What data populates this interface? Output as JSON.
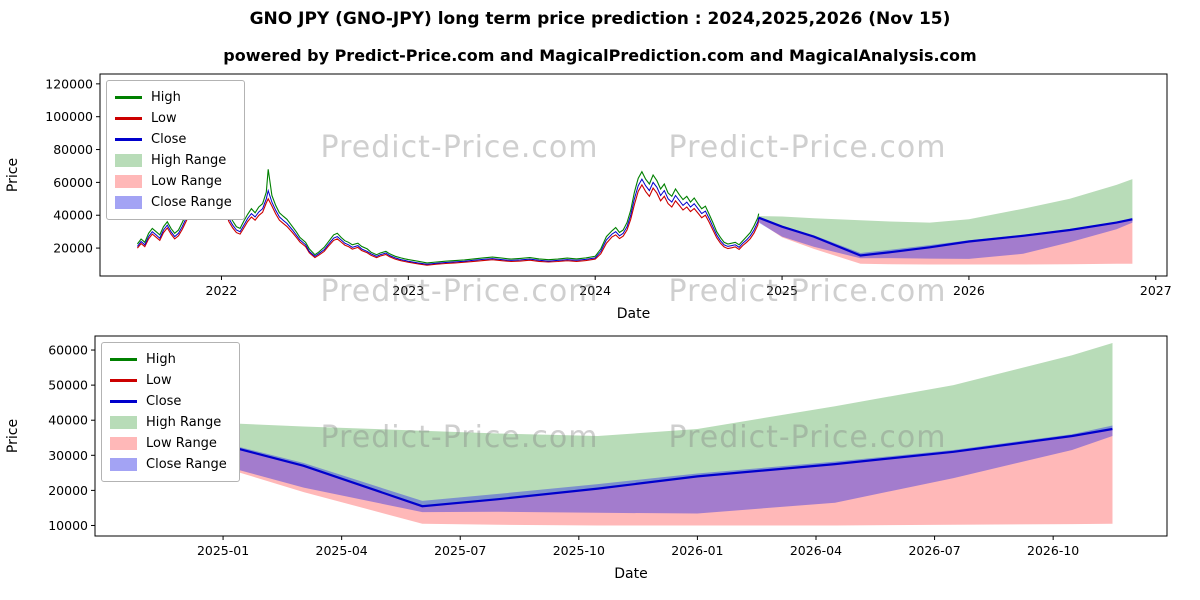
{
  "page": {
    "title": "GNO JPY (GNO-JPY) long term price prediction : 2024,2025,2026 (Nov 15)",
    "subtitle": "powered by Predict-Price.com and MagicalPrediction.com and MagicalAnalysis.com"
  },
  "watermark": {
    "text": "Predict-Price.com"
  },
  "colors": {
    "high": "#008000",
    "low": "#cc0000",
    "close": "#0000cc",
    "high_range": "rgba(0,128,0,0.28)",
    "low_range": "rgba(255,0,0,0.28)",
    "close_range": "rgba(50,50,230,0.45)"
  },
  "legend": {
    "entries": [
      {
        "label": "High",
        "swatch": "line",
        "color_key": "high"
      },
      {
        "label": "Low",
        "swatch": "line",
        "color_key": "low"
      },
      {
        "label": "Close",
        "swatch": "line",
        "color_key": "close"
      },
      {
        "label": "High Range",
        "swatch": "patch",
        "color_key": "high_range"
      },
      {
        "label": "Low Range",
        "swatch": "patch",
        "color_key": "low_range"
      },
      {
        "label": "Close Range",
        "swatch": "patch",
        "color_key": "close_range"
      }
    ]
  },
  "chart_data": [
    {
      "type": "line",
      "name": "long-term-history-and-forecast",
      "xlabel": "Date",
      "ylabel": "Price",
      "xlim": [
        2021.35,
        2027.06
      ],
      "ylim": [
        3000,
        126000
      ],
      "xticks": {
        "values": [
          2022,
          2023,
          2024,
          2025,
          2026,
          2027
        ],
        "labels": [
          "2022",
          "2023",
          "2024",
          "2025",
          "2026",
          "2027"
        ]
      },
      "yticks": {
        "values": [
          20000,
          40000,
          60000,
          80000,
          100000,
          120000
        ],
        "labels": [
          "20000",
          "40000",
          "60000",
          "80000",
          "100000",
          "120000"
        ]
      },
      "history": {
        "x": [
          2021.55,
          2021.57,
          2021.59,
          2021.61,
          2021.63,
          2021.65,
          2021.67,
          2021.69,
          2021.71,
          2021.73,
          2021.75,
          2021.77,
          2021.79,
          2021.81,
          2021.83,
          2021.85,
          2021.86,
          2021.88,
          2021.9,
          2021.92,
          2021.94,
          2021.96,
          2021.98,
          2022.0,
          2022.02,
          2022.04,
          2022.06,
          2022.08,
          2022.1,
          2022.12,
          2022.14,
          2022.16,
          2022.18,
          2022.2,
          2022.22,
          2022.24,
          2022.25,
          2022.27,
          2022.29,
          2022.31,
          2022.33,
          2022.35,
          2022.38,
          2022.4,
          2022.42,
          2022.45,
          2022.47,
          2022.5,
          2022.52,
          2022.55,
          2022.57,
          2022.6,
          2022.62,
          2022.64,
          2022.66,
          2022.68,
          2022.7,
          2022.73,
          2022.75,
          2022.78,
          2022.8,
          2022.83,
          2022.85,
          2022.88,
          2022.9,
          2022.93,
          2022.96,
          2022.98,
          2023.0,
          2023.05,
          2023.1,
          2023.15,
          2023.2,
          2023.25,
          2023.3,
          2023.35,
          2023.4,
          2023.45,
          2023.5,
          2023.55,
          2023.6,
          2023.65,
          2023.7,
          2023.75,
          2023.8,
          2023.85,
          2023.9,
          2023.95,
          2024.0,
          2024.03,
          2024.06,
          2024.09,
          2024.11,
          2024.13,
          2024.15,
          2024.17,
          2024.19,
          2024.21,
          2024.23,
          2024.25,
          2024.27,
          2024.29,
          2024.31,
          2024.33,
          2024.35,
          2024.37,
          2024.39,
          2024.41,
          2024.43,
          2024.45,
          2024.47,
          2024.49,
          2024.51,
          2024.53,
          2024.55,
          2024.57,
          2024.59,
          2024.61,
          2024.63,
          2024.65,
          2024.67,
          2024.69,
          2024.71,
          2024.73,
          2024.75,
          2024.77,
          2024.79,
          2024.81,
          2024.83,
          2024.85,
          2024.87,
          2024.875
        ],
        "high": [
          22500,
          25500,
          23500,
          29000,
          32000,
          30000,
          28000,
          33000,
          36000,
          32000,
          29000,
          31000,
          35500,
          40500,
          46000,
          49500,
          122000,
          51500,
          48000,
          45000,
          49500,
          46000,
          42500,
          44000,
          48000,
          40500,
          36500,
          33000,
          32000,
          36500,
          40500,
          44000,
          41500,
          45000,
          47000,
          54000,
          68000,
          52000,
          46000,
          41500,
          39500,
          37500,
          33000,
          30000,
          26500,
          23500,
          19500,
          16000,
          17500,
          20500,
          23500,
          28000,
          29000,
          26500,
          24500,
          23500,
          22000,
          23000,
          21000,
          19500,
          17500,
          16000,
          17000,
          18000,
          16500,
          15000,
          14000,
          13500,
          13000,
          12000,
          11000,
          11500,
          12000,
          12400,
          12800,
          13400,
          14000,
          14500,
          13900,
          13300,
          13700,
          14200,
          13400,
          12900,
          13300,
          13900,
          13400,
          14000,
          15000,
          19500,
          27000,
          30500,
          32500,
          29500,
          31000,
          35500,
          43000,
          54000,
          62500,
          66500,
          62000,
          59000,
          64500,
          61000,
          56000,
          59000,
          53500,
          51500,
          56000,
          52500,
          49500,
          51500,
          48000,
          50500,
          47000,
          44000,
          45500,
          40500,
          35500,
          30000,
          26500,
          23500,
          22500,
          23000,
          23500,
          22000,
          24500,
          27000,
          29500,
          33500,
          38500,
          41000
        ],
        "low": [
          20000,
          22800,
          20900,
          25600,
          28500,
          26600,
          24700,
          29400,
          32300,
          28500,
          25600,
          27500,
          31300,
          36100,
          40800,
          43700,
          45000,
          45600,
          42700,
          39900,
          43700,
          40800,
          38000,
          38900,
          42700,
          36100,
          32300,
          29400,
          28500,
          32300,
          36100,
          38900,
          37000,
          39900,
          41800,
          47500,
          50000,
          45600,
          40800,
          37000,
          35100,
          33200,
          29400,
          26600,
          23700,
          20900,
          17100,
          14200,
          15600,
          18000,
          20900,
          24700,
          25600,
          23700,
          21800,
          20900,
          19400,
          20400,
          18500,
          17100,
          15600,
          14200,
          15200,
          16100,
          14700,
          13300,
          12300,
          11800,
          11400,
          10400,
          9600,
          10200,
          10600,
          11000,
          11400,
          11900,
          12400,
          12900,
          12300,
          11800,
          12100,
          12600,
          11900,
          11500,
          11800,
          12300,
          11900,
          12400,
          13300,
          16500,
          23000,
          26800,
          28000,
          25800,
          27300,
          31000,
          37500,
          46500,
          54500,
          58500,
          54500,
          51500,
          56500,
          53500,
          48800,
          51500,
          47000,
          45000,
          48800,
          46000,
          43200,
          45000,
          42200,
          44100,
          41300,
          38500,
          40000,
          35700,
          31000,
          26300,
          23000,
          20700,
          19700,
          20200,
          20700,
          19200,
          21600,
          23500,
          25800,
          29100,
          34000,
          37500
        ],
        "close": [
          21000,
          24000,
          22000,
          27000,
          30000,
          28000,
          26000,
          31000,
          34000,
          30000,
          27000,
          29000,
          33000,
          38000,
          43000,
          46000,
          50000,
          48000,
          45000,
          42000,
          46000,
          43000,
          40000,
          41000,
          45000,
          38000,
          34000,
          31000,
          30000,
          34000,
          38000,
          41000,
          39000,
          42000,
          44000,
          50000,
          55000,
          48000,
          43000,
          39000,
          37000,
          35000,
          31000,
          28000,
          25000,
          22000,
          18000,
          15000,
          16500,
          19000,
          22000,
          26000,
          27000,
          25000,
          23000,
          22000,
          20500,
          21500,
          19500,
          18000,
          16500,
          15000,
          16000,
          17000,
          15500,
          14000,
          13000,
          12500,
          12000,
          11000,
          10200,
          10800,
          11200,
          11600,
          12000,
          12600,
          13100,
          13600,
          13000,
          12500,
          12800,
          13300,
          12600,
          12100,
          12500,
          13000,
          12600,
          13100,
          14000,
          18000,
          25000,
          28500,
          30000,
          27500,
          29000,
          33000,
          40000,
          50000,
          58000,
          62000,
          58000,
          55000,
          60000,
          57000,
          52000,
          55000,
          50000,
          48000,
          52000,
          49000,
          46000,
          48000,
          45000,
          47000,
          44000,
          41000,
          42500,
          38000,
          33000,
          28000,
          24500,
          22000,
          21000,
          21500,
          22000,
          20500,
          23000,
          25000,
          27500,
          31000,
          36000,
          38500
        ]
      },
      "forecast": {
        "x": [
          2024.875,
          2025.0,
          2025.17,
          2025.42,
          2025.58,
          2025.79,
          2026.0,
          2026.29,
          2026.54,
          2026.79,
          2026.875
        ],
        "close": [
          38500,
          33000,
          27000,
          15500,
          17500,
          20500,
          24000,
          27500,
          31000,
          35500,
          37500
        ],
        "high_upper": [
          39500,
          39200,
          38200,
          37000,
          36200,
          35500,
          37500,
          44000,
          50000,
          58500,
          62000
        ],
        "low_lower": [
          36000,
          26500,
          19500,
          10500,
          10200,
          10000,
          10000,
          10000,
          10200,
          10400,
          10500
        ],
        "close_upper": [
          39000,
          33500,
          27800,
          17000,
          19000,
          21800,
          24800,
          28200,
          31500,
          36000,
          38500
        ],
        "close_lower": [
          35500,
          27000,
          20800,
          13800,
          13900,
          13600,
          13400,
          16500,
          23500,
          31500,
          35500
        ]
      }
    },
    {
      "type": "line",
      "name": "forecast-detail",
      "xlabel": "Date",
      "ylabel": "Price",
      "xlim": [
        2024.73,
        2026.99
      ],
      "ylim": [
        7000,
        64000
      ],
      "xticks": {
        "values": [
          2025.0,
          2025.25,
          2025.5,
          2025.75,
          2026.0,
          2026.25,
          2026.5,
          2026.75
        ],
        "labels": [
          "2025-01",
          "2025-04",
          "2025-07",
          "2025-10",
          "2026-01",
          "2026-04",
          "2026-07",
          "2026-10"
        ]
      },
      "yticks": {
        "values": [
          10000,
          20000,
          30000,
          40000,
          50000,
          60000
        ],
        "labels": [
          "10000",
          "20000",
          "30000",
          "40000",
          "50000",
          "60000"
        ]
      },
      "forecast": {
        "x": [
          2024.875,
          2025.0,
          2025.17,
          2025.42,
          2025.58,
          2025.79,
          2026.0,
          2026.29,
          2026.54,
          2026.79,
          2026.875
        ],
        "close": [
          38500,
          33000,
          27000,
          15500,
          17500,
          20500,
          24000,
          27500,
          31000,
          35500,
          37500
        ],
        "high_upper": [
          39500,
          39200,
          38200,
          37000,
          36200,
          35500,
          37500,
          44000,
          50000,
          58500,
          62000
        ],
        "low_lower": [
          36000,
          26500,
          19500,
          10500,
          10200,
          10000,
          10000,
          10000,
          10200,
          10400,
          10500
        ],
        "close_upper": [
          39000,
          33500,
          27800,
          17000,
          19000,
          21800,
          24800,
          28200,
          31500,
          36000,
          38500
        ],
        "close_lower": [
          35500,
          27000,
          20800,
          13800,
          13900,
          13600,
          13400,
          16500,
          23500,
          31500,
          35500
        ]
      }
    }
  ]
}
